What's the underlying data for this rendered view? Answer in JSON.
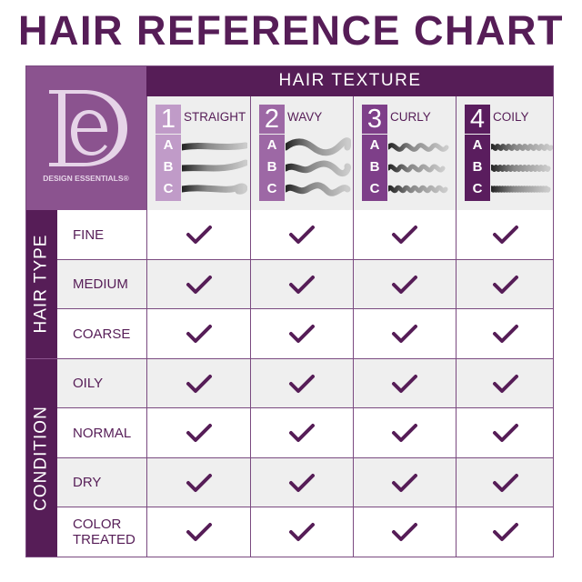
{
  "title": "HAIR REFERENCE CHART",
  "brand": {
    "name": "DESIGN ESSENTIALS®",
    "monogram": "DE"
  },
  "texture_header": "HAIR TEXTURE",
  "textures": [
    {
      "number": "1",
      "name": "STRAIGHT",
      "subtypes": [
        "A",
        "B",
        "C"
      ],
      "color": "#c09bc8"
    },
    {
      "number": "2",
      "name": "WAVY",
      "subtypes": [
        "A",
        "B",
        "C"
      ],
      "color": "#9d68a5"
    },
    {
      "number": "3",
      "name": "CURLY",
      "subtypes": [
        "A",
        "B",
        "C"
      ],
      "color": "#7e3f89"
    },
    {
      "number": "4",
      "name": "COILY",
      "subtypes": [
        "A",
        "B",
        "C"
      ],
      "color": "#5a1d5e"
    }
  ],
  "groups": [
    {
      "label": "HAIR TYPE",
      "rows": [
        "FINE",
        "MEDIUM",
        "COARSE"
      ]
    },
    {
      "label": "CONDITION",
      "rows": [
        "OILY",
        "NORMAL",
        "DRY",
        "COLOR TREATED"
      ]
    }
  ],
  "checks": "all rows suitable for all 4 textures",
  "colors": {
    "primary": "#561d57",
    "logo_bg": "#8b538f",
    "alt_row": "#efefef"
  }
}
